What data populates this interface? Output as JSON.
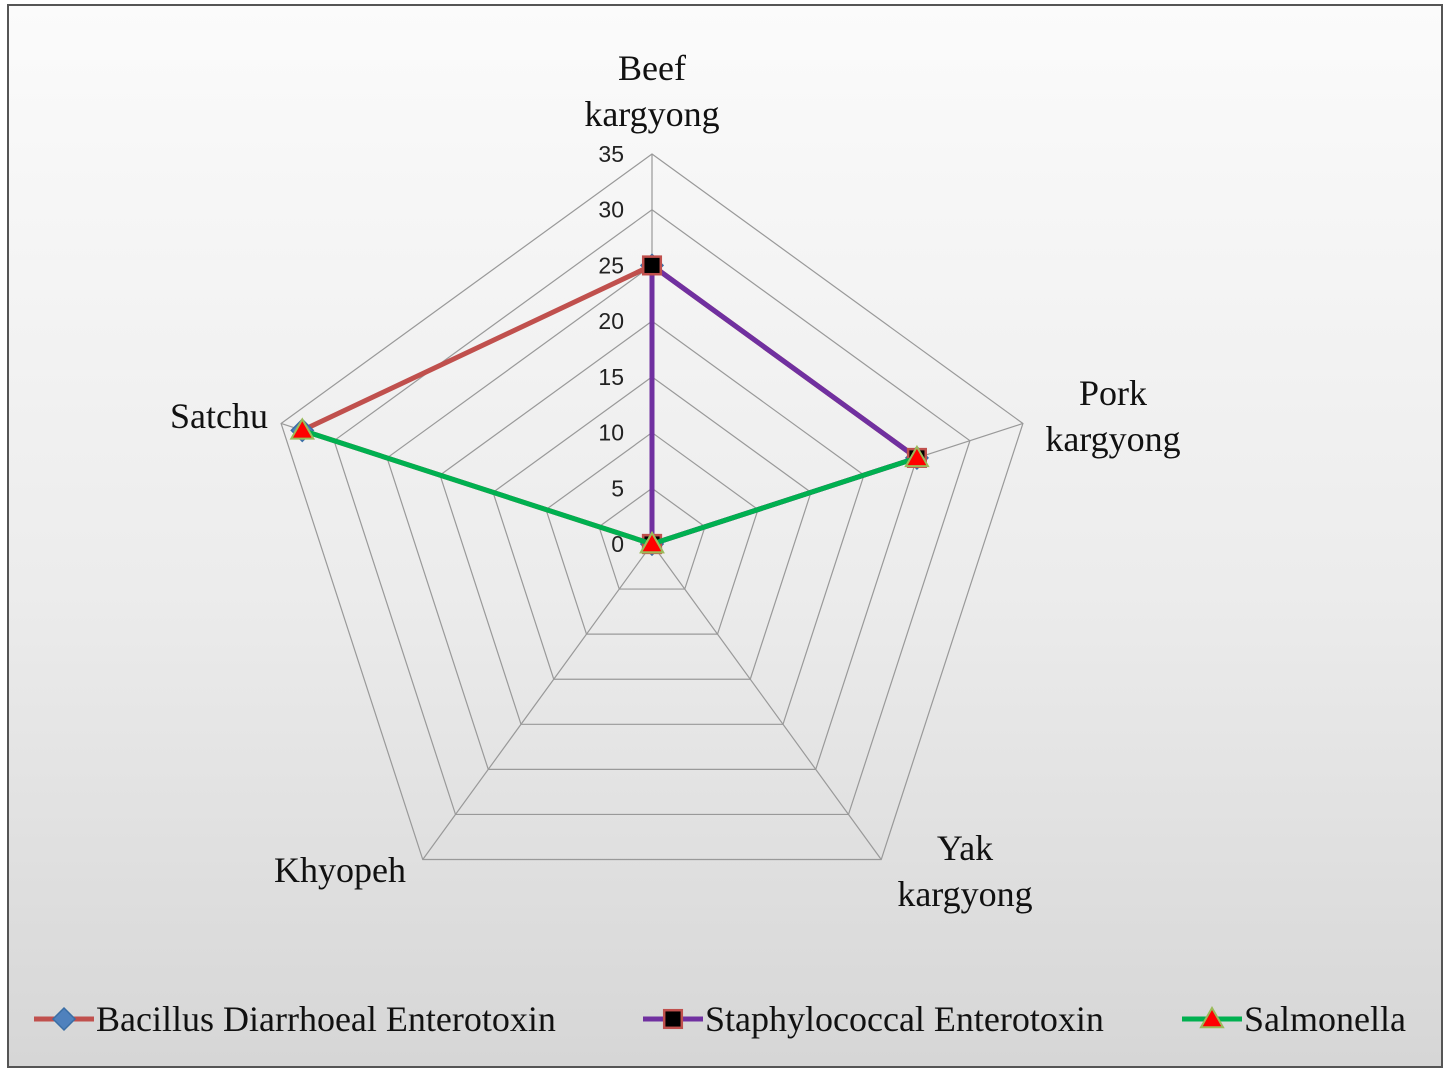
{
  "chart_data": {
    "type": "radar",
    "categories": [
      [
        "Beef",
        "kargyong"
      ],
      [
        "Pork",
        "kargyong"
      ],
      [
        "Yak",
        "kargyong"
      ],
      [
        "Khyopeh"
      ],
      [
        "Satchu"
      ]
    ],
    "rlim": [
      0,
      35
    ],
    "ticks": [
      "0",
      "5",
      "10",
      "15",
      "20",
      "25",
      "30",
      "35"
    ],
    "series": [
      {
        "name": "Bacillus Diarrhoeal Enterotoxin",
        "values": [
          25,
          25,
          0,
          0,
          33
        ],
        "color": "#C0504D",
        "marker": "diamond",
        "marker_color": "#4F81BD"
      },
      {
        "name": "Staphylococcal Enterotoxin",
        "values": [
          25,
          25,
          0,
          0,
          0
        ],
        "color": "#7030A0",
        "marker": "square",
        "marker_color": "#000000"
      },
      {
        "name": "Salmonella",
        "values": [
          0,
          25,
          0,
          0,
          33
        ],
        "color": "#00B050",
        "marker": "triangle",
        "marker_color": "#FF0000"
      }
    ],
    "grid": true,
    "legend_position": "bottom"
  }
}
